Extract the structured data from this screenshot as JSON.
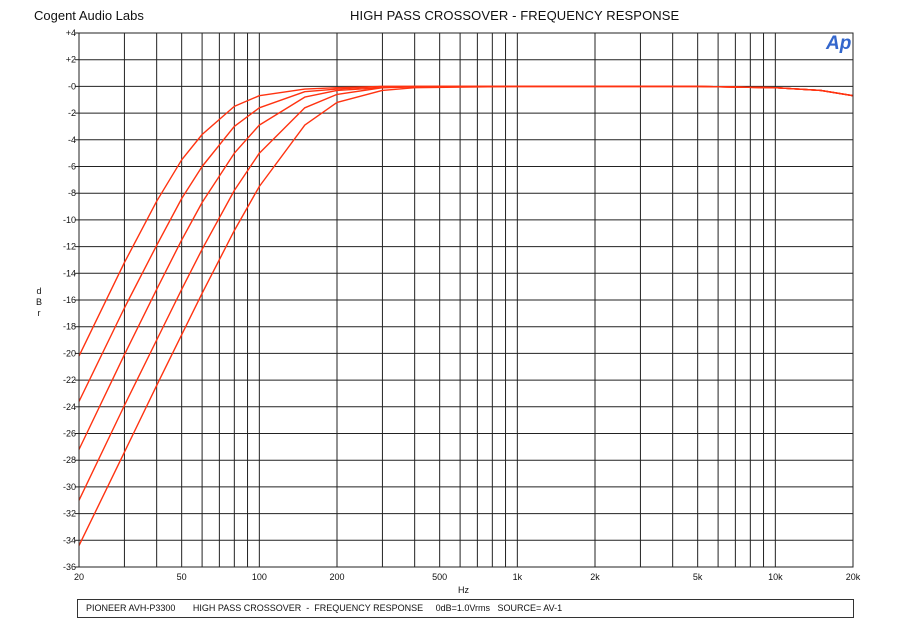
{
  "header": {
    "brand": "Cogent Audio Labs",
    "title": "HIGH PASS CROSSOVER  -  FREQUENCY RESPONSE",
    "logo": "Ap"
  },
  "footer": {
    "text": "PIONEER AVH-P3300       HIGH PASS CROSSOVER  -  FREQUENCY RESPONSE     0dB=1.0Vrms   SOURCE= AV-1"
  },
  "chart_data": {
    "type": "line",
    "title": "HIGH PASS CROSSOVER  -  FREQUENCY RESPONSE",
    "xlabel": "Hz",
    "ylabel": "d B r",
    "x_scale": "log",
    "xlim": [
      20,
      20000
    ],
    "ylim": [
      -36,
      4
    ],
    "grid": true,
    "line_color": "#ff3311",
    "x_ticks": [
      {
        "value": 20,
        "label": "20"
      },
      {
        "value": 50,
        "label": "50"
      },
      {
        "value": 100,
        "label": "100"
      },
      {
        "value": 200,
        "label": "200"
      },
      {
        "value": 500,
        "label": "500"
      },
      {
        "value": 1000,
        "label": "1k"
      },
      {
        "value": 2000,
        "label": "2k"
      },
      {
        "value": 5000,
        "label": "5k"
      },
      {
        "value": 10000,
        "label": "10k"
      },
      {
        "value": 20000,
        "label": "20k"
      }
    ],
    "y_ticks": [
      {
        "value": 4,
        "label": "+4"
      },
      {
        "value": 2,
        "label": "+2"
      },
      {
        "value": 0,
        "label": "-0"
      },
      {
        "value": -2,
        "label": "-2"
      },
      {
        "value": -4,
        "label": "-4"
      },
      {
        "value": -6,
        "label": "-6"
      },
      {
        "value": -8,
        "label": "-8"
      },
      {
        "value": -10,
        "label": "-10"
      },
      {
        "value": -12,
        "label": "-12"
      },
      {
        "value": -14,
        "label": "-14"
      },
      {
        "value": -16,
        "label": "-16"
      },
      {
        "value": -18,
        "label": "-18"
      },
      {
        "value": -20,
        "label": "-20"
      },
      {
        "value": -22,
        "label": "-22"
      },
      {
        "value": -24,
        "label": "-24"
      },
      {
        "value": -26,
        "label": "-26"
      },
      {
        "value": -28,
        "label": "-28"
      },
      {
        "value": -30,
        "label": "-30"
      },
      {
        "value": -32,
        "label": "-32"
      },
      {
        "value": -34,
        "label": "-34"
      },
      {
        "value": -36,
        "label": "-36"
      }
    ],
    "series": [
      {
        "x": [
          20,
          30,
          40,
          50,
          60,
          80,
          100,
          150,
          200,
          300,
          500,
          1000,
          5000,
          10000,
          15000,
          20000
        ],
        "values": [
          -20.2,
          -13.2,
          -8.6,
          -5.5,
          -3.6,
          -1.5,
          -0.7,
          -0.2,
          -0.1,
          0,
          0,
          0,
          0,
          -0.1,
          -0.3,
          -0.7
        ]
      },
      {
        "x": [
          20,
          30,
          40,
          50,
          60,
          80,
          100,
          150,
          200,
          300,
          500,
          1000,
          5000,
          10000,
          15000,
          20000
        ],
        "values": [
          -23.6,
          -16.6,
          -11.9,
          -8.4,
          -6.0,
          -3.0,
          -1.6,
          -0.4,
          -0.2,
          0,
          0,
          0,
          0,
          -0.1,
          -0.3,
          -0.7
        ]
      },
      {
        "x": [
          20,
          30,
          40,
          50,
          60,
          80,
          100,
          150,
          200,
          300,
          500,
          1000,
          5000,
          10000,
          15000,
          20000
        ],
        "values": [
          -27.2,
          -20.1,
          -15.2,
          -11.5,
          -8.7,
          -5.0,
          -2.9,
          -0.8,
          -0.3,
          -0.1,
          0,
          0,
          0,
          -0.1,
          -0.3,
          -0.7
        ]
      },
      {
        "x": [
          20,
          30,
          40,
          50,
          60,
          80,
          100,
          150,
          200,
          300,
          400,
          1000,
          5000,
          10000,
          15000,
          20000
        ],
        "values": [
          -31.0,
          -23.9,
          -19.0,
          -15.2,
          -12.2,
          -7.8,
          -5.0,
          -1.6,
          -0.6,
          -0.1,
          0,
          0,
          0,
          -0.1,
          -0.3,
          -0.7
        ]
      },
      {
        "x": [
          20,
          30,
          40,
          50,
          60,
          80,
          100,
          150,
          200,
          300,
          400,
          1000,
          5000,
          10000,
          15000,
          20000
        ],
        "values": [
          -34.4,
          -27.4,
          -22.4,
          -18.6,
          -15.5,
          -10.8,
          -7.5,
          -2.9,
          -1.2,
          -0.3,
          -0.1,
          0,
          0,
          -0.1,
          -0.3,
          -0.7
        ]
      }
    ]
  }
}
